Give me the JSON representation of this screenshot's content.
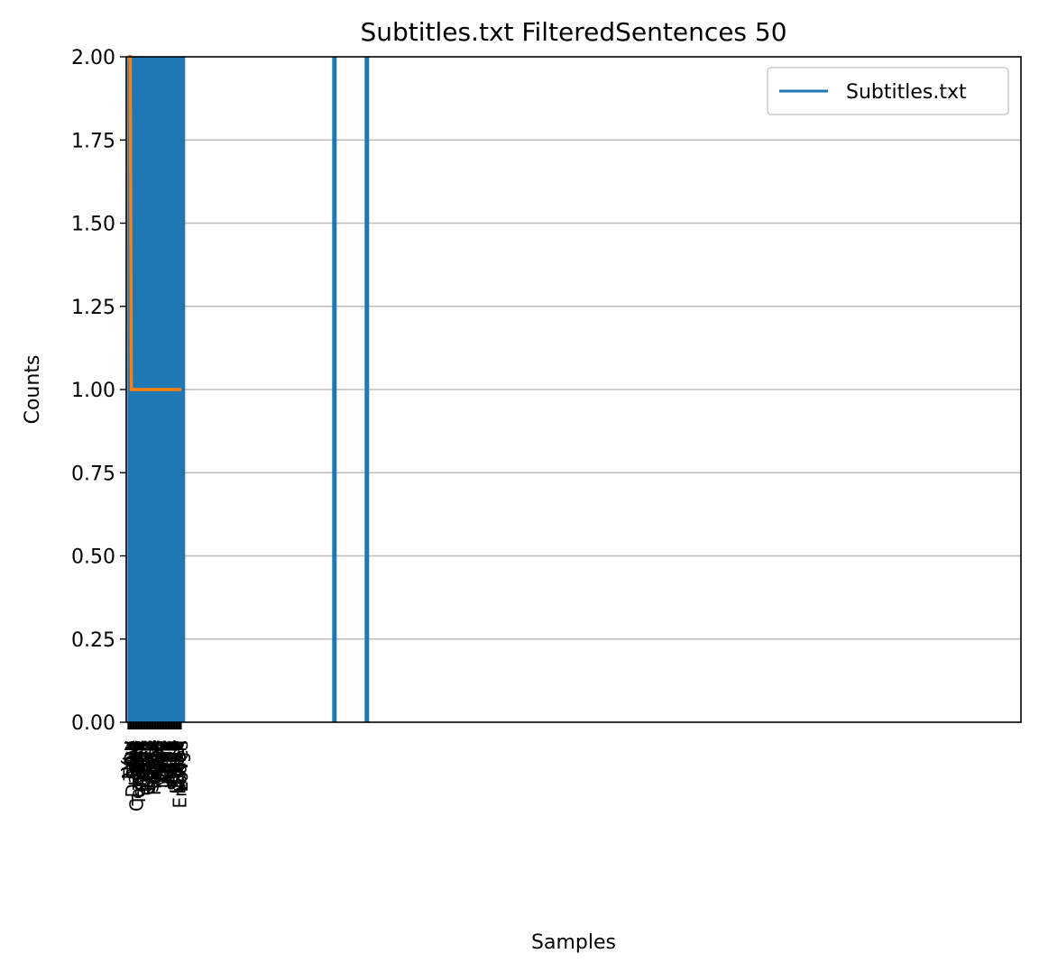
{
  "chart_data": {
    "type": "line",
    "title": "Subtitles.txt FilteredSentences 50",
    "xlabel": "Samples",
    "ylabel": "Counts",
    "ylim": [
      0,
      2
    ],
    "y_ticks": [
      "0.00",
      "0.25",
      "0.50",
      "0.75",
      "1.00",
      "1.25",
      "1.50",
      "1.75",
      "2.00"
    ],
    "grid": "horizontal",
    "legend": {
      "placement": "top-right",
      "entries": [
        {
          "label": "Subtitles.txt",
          "color": "#1f77b4"
        }
      ]
    },
    "series": [
      {
        "name": "Subtitles.txt",
        "color": "#1f77b4",
        "values": [
          2,
          2,
          2,
          1,
          1,
          1,
          1,
          1,
          1,
          1,
          1,
          1,
          1,
          1,
          1,
          1,
          1,
          1,
          1,
          1,
          1,
          1,
          1,
          1,
          1,
          1,
          1,
          1,
          1,
          1,
          1,
          1,
          1,
          1,
          1,
          1,
          1,
          1,
          1,
          1,
          1,
          1,
          1,
          1,
          1,
          1,
          1,
          1,
          1,
          1
        ]
      },
      {
        "color": "#ff7f0e",
        "values": [
          2,
          2,
          2,
          1,
          1,
          1,
          1,
          1,
          1,
          1,
          1,
          1,
          1,
          1,
          1,
          1,
          1,
          1,
          1,
          1,
          1,
          1,
          1,
          1,
          1,
          1,
          1,
          1,
          1,
          1,
          1,
          1,
          1,
          1,
          1,
          1,
          1,
          1,
          1,
          1,
          1,
          1,
          1,
          1,
          1,
          1,
          1,
          1,
          1,
          1
        ]
      }
    ],
    "x_tick_labels": [
      "You",
      "Now",
      "Take",
      "Do",
      "Dance",
      "Spin",
      "Sing",
      "Jump",
      "Convert",
      "The",
      "Tonight",
      "Think",
      "Yes",
      "Come",
      "Bring",
      "Open",
      "Walk",
      "Hold",
      "Check",
      "Every",
      "Turn",
      "Clap",
      "Shout",
      "Light",
      "Reach",
      "Touch",
      "Feel",
      "Hear",
      "Start",
      "Stop",
      "Rise",
      "Fall",
      "Look",
      "Move",
      "Run",
      "Call",
      "Play",
      "Wait",
      "Keep",
      "Join",
      "Lead",
      "Write",
      "Read",
      "Shine",
      "Smile",
      "Leave",
      "Enter",
      "Listen",
      "Enough",
      "Loves"
    ],
    "vertical_line_positions": [
      0,
      1,
      3,
      7,
      9,
      12,
      14,
      17,
      19,
      22,
      24,
      27,
      29,
      31,
      33,
      35,
      37,
      39,
      41,
      43,
      45,
      47,
      49,
      189,
      219
    ]
  },
  "colors": {
    "grid": "#bdbdbd",
    "band": "#c0c0c0",
    "frame": "#000000"
  }
}
